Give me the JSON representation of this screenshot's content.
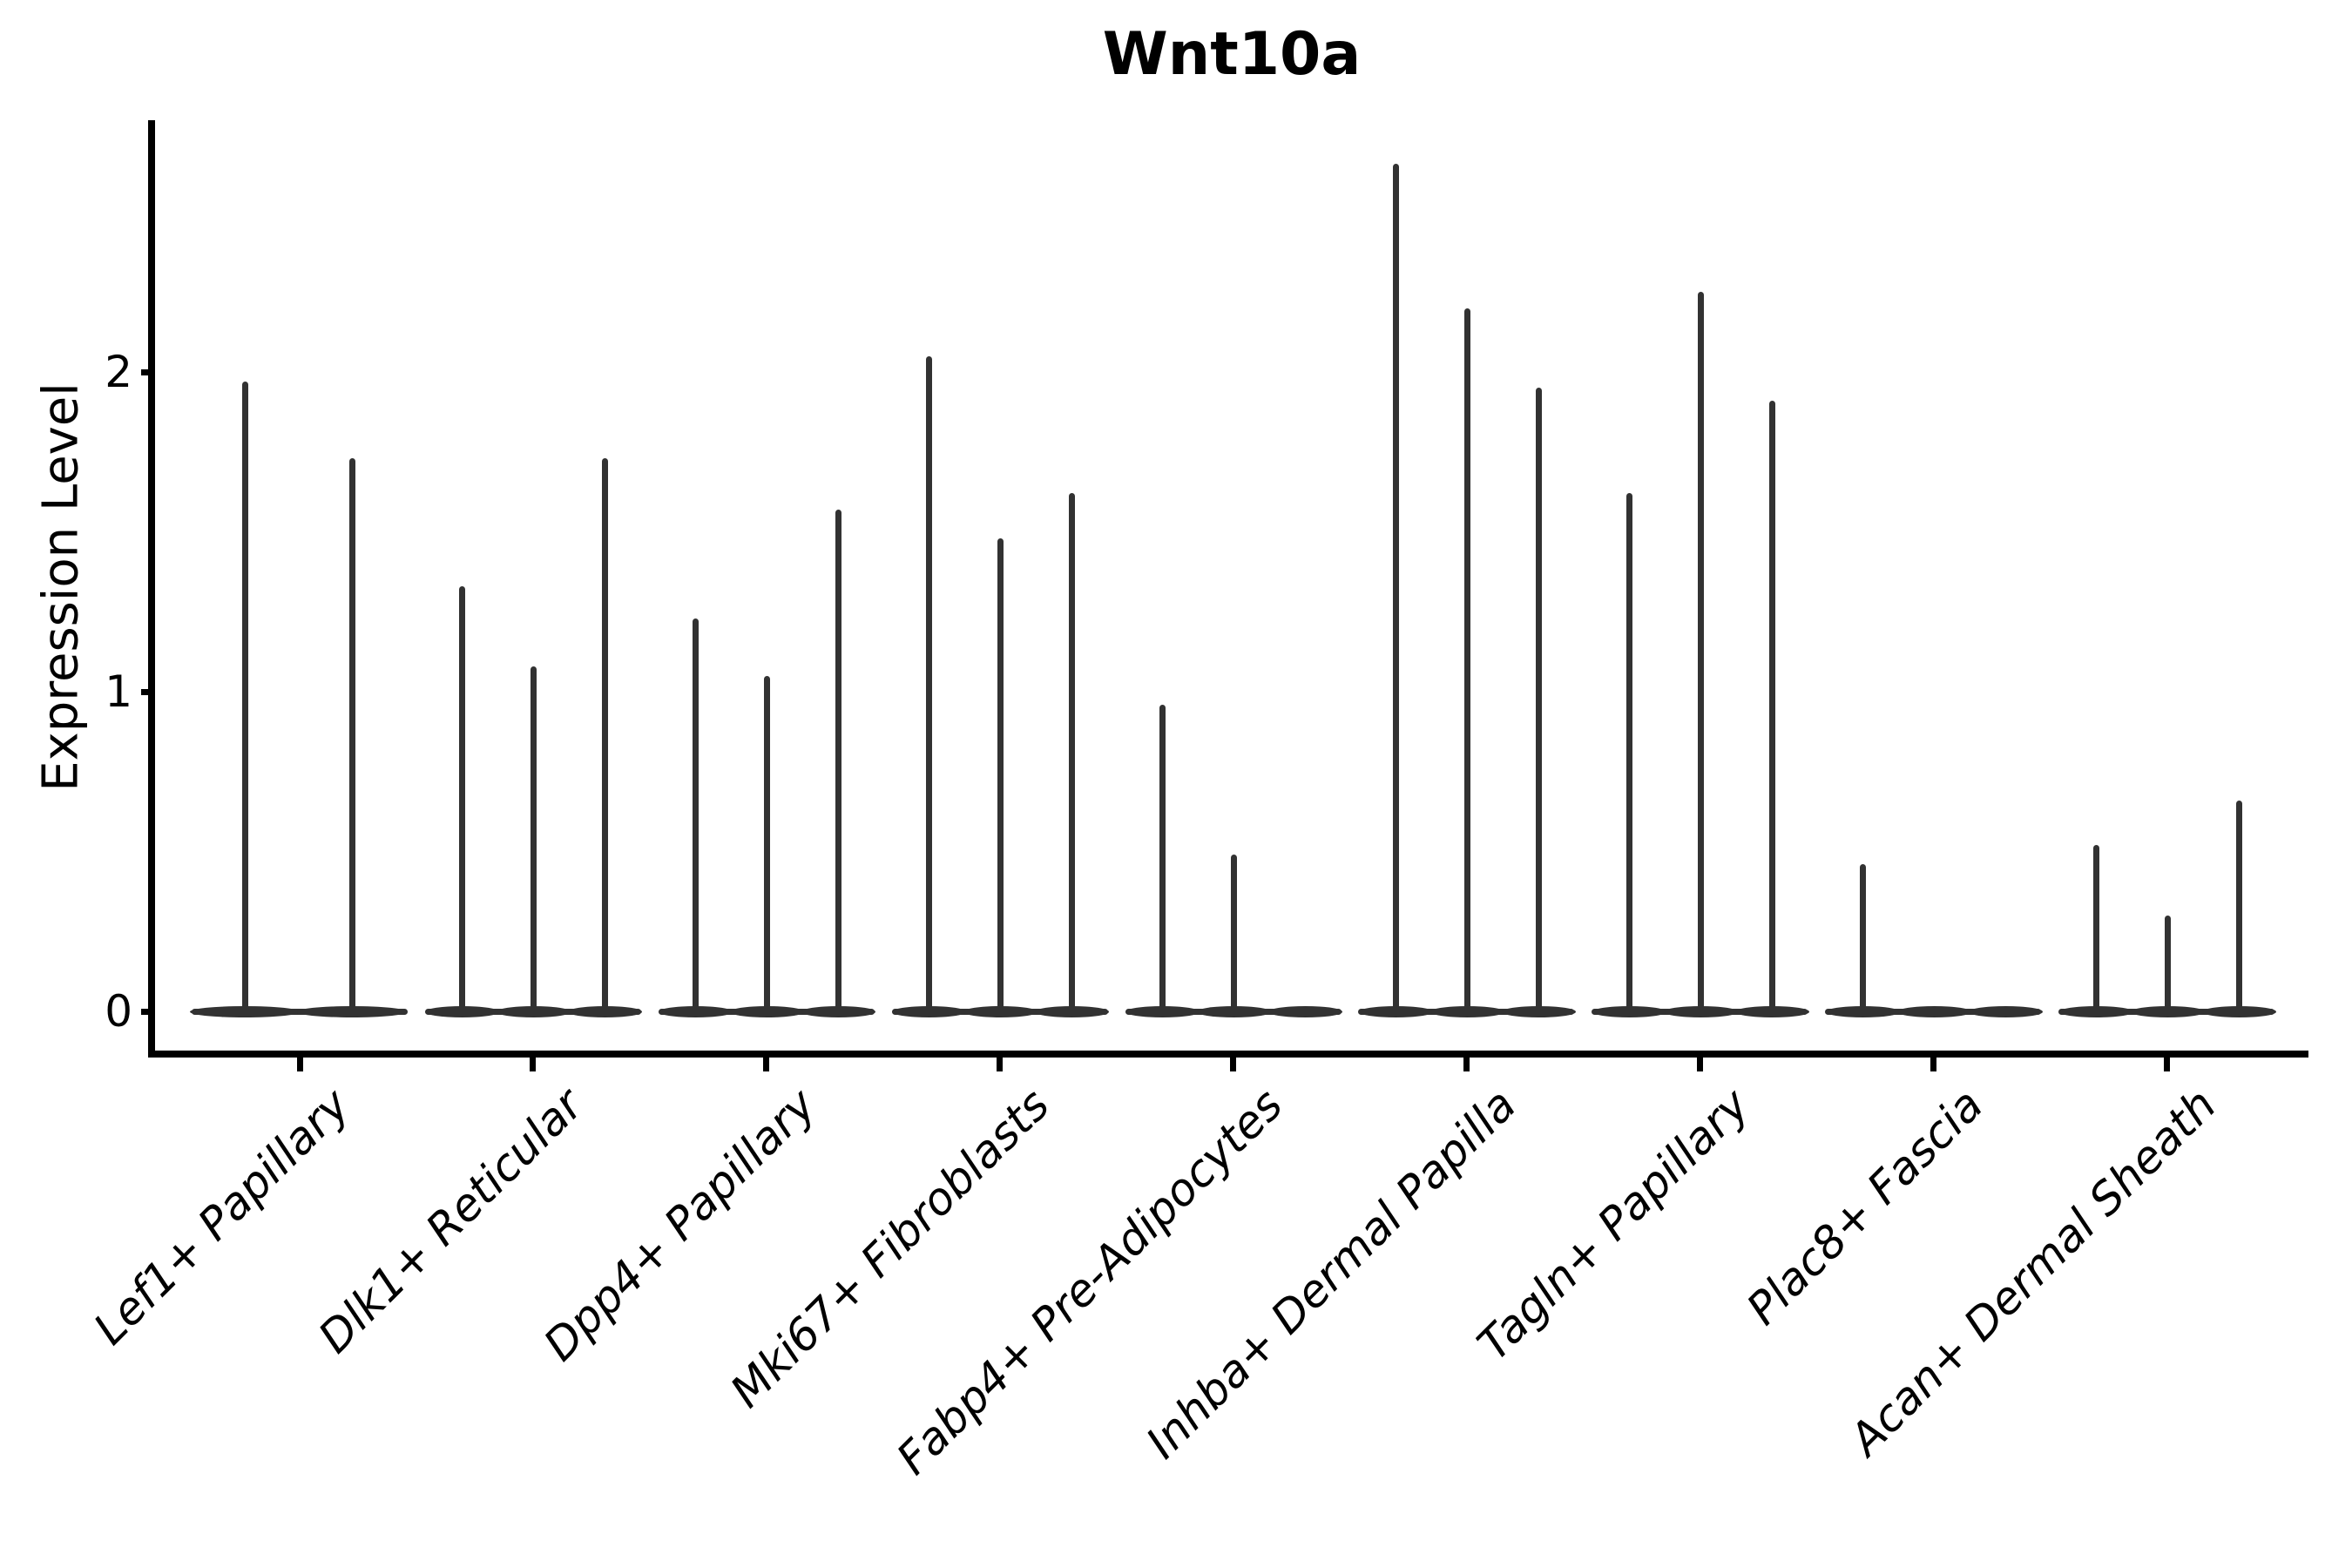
{
  "title": "Wnt10a",
  "chart_data": {
    "type": "violin",
    "title": "Wnt10a",
    "xlabel": "",
    "ylabel": "Expression Level",
    "yticks": [
      0,
      1,
      2
    ],
    "ylim": [
      -0.13,
      2.79
    ],
    "grid": false,
    "legend_position": "none",
    "style_note": "Seurat-style single-gene violin plot; nearly all expression mass at 0 so each violin renders as a flat disc at y=0 with a thin vertical spike up to its maximum expression value; up to 3 split violins per cluster; x tick labels italic, rotated 45 degrees",
    "violin_color": "#323232",
    "categories": [
      "Lef1+ Papillary",
      "Dlk1+ Reticular",
      "Dpp4+ Papillary",
      "Mki67+ Fibroblasts",
      "Fabp4+ Pre-Adipocytes",
      "Inhba+ Dermal Papilla",
      "Tagln+ Papillary",
      "Plac8+ Fascia",
      "Acan+ Dermal Sheath"
    ],
    "violins": [
      {
        "category": "Lef1+ Papillary",
        "spike_maxima": [
          1.97,
          1.73
        ]
      },
      {
        "category": "Dlk1+ Reticular",
        "spike_maxima": [
          1.33,
          1.08,
          1.73
        ]
      },
      {
        "category": "Dpp4+ Papillary",
        "spike_maxima": [
          1.23,
          1.05,
          1.57
        ]
      },
      {
        "category": "Mki67+ Fibroblasts",
        "spike_maxima": [
          2.05,
          1.48,
          1.62
        ]
      },
      {
        "category": "Fabp4+ Pre-Adipocytes",
        "spike_maxima": [
          0.96,
          0.49,
          null
        ]
      },
      {
        "category": "Inhba+ Dermal Papilla",
        "spike_maxima": [
          2.65,
          2.2,
          1.95
        ]
      },
      {
        "category": "Tagln+ Papillary",
        "spike_maxima": [
          1.62,
          2.25,
          1.91
        ]
      },
      {
        "category": "Plac8+ Fascia",
        "spike_maxima": [
          0.46,
          null,
          null
        ]
      },
      {
        "category": "Acan+ Dermal Sheath",
        "spike_maxima": [
          0.52,
          0.3,
          0.66
        ]
      }
    ]
  }
}
